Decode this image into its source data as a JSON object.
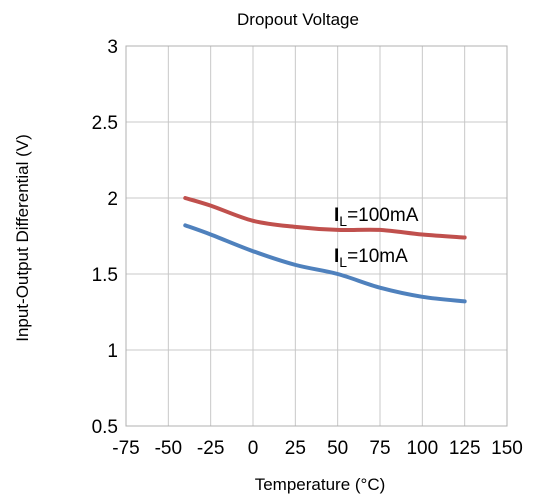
{
  "chart_data": {
    "type": "line",
    "title": "Dropout Voltage",
    "xlabel": "Temperature (°C)",
    "ylabel": "Input-Output Differential (V)",
    "xlim": [
      -75,
      150
    ],
    "ylim": [
      0.5,
      3
    ],
    "xticks": [
      -75,
      -50,
      -25,
      0,
      25,
      50,
      75,
      100,
      125,
      150
    ],
    "yticks": [
      0.5,
      1,
      1.5,
      2,
      2.5,
      3
    ],
    "xtick_labels": [
      "-75",
      "-50",
      "-25",
      "0",
      "25",
      "50",
      "75",
      "100",
      "125",
      "150"
    ],
    "ytick_labels": [
      "0.5",
      "1",
      "1.5",
      "2",
      "2.5",
      "3"
    ],
    "grid": true,
    "series": [
      {
        "name": "IL=100mA",
        "label_main": "I",
        "label_sub": "L",
        "label_rest": "=100mA",
        "color": "#c0504d",
        "x": [
          -40,
          -25,
          0,
          25,
          50,
          75,
          100,
          125
        ],
        "y": [
          2.0,
          1.95,
          1.85,
          1.81,
          1.79,
          1.79,
          1.76,
          1.74
        ]
      },
      {
        "name": "IL=10mA",
        "label_main": "I",
        "label_sub": "L",
        "label_rest": "=10mA",
        "color": "#4f81bd",
        "x": [
          -40,
          -25,
          0,
          25,
          50,
          75,
          100,
          125
        ],
        "y": [
          1.82,
          1.76,
          1.65,
          1.56,
          1.5,
          1.41,
          1.35,
          1.32
        ]
      }
    ]
  }
}
